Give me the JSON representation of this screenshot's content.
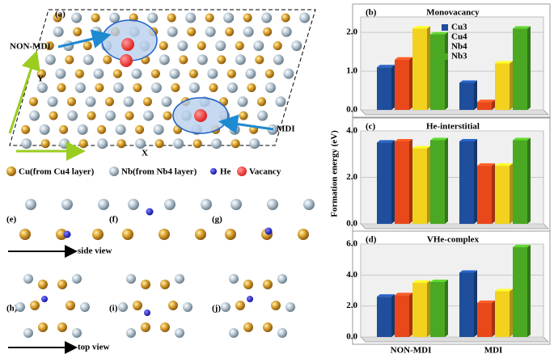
{
  "diagram": {
    "panel_label": "(a)",
    "non_mdi": "NON-MDI",
    "mdi": "MDI",
    "axis_y": "Y",
    "axis_x": "X",
    "legend": [
      "Cu(from Cu4 layer)",
      "Nb(from Nb4 layer)",
      "He",
      "Vacancy"
    ],
    "subpanels": [
      "(e)",
      "(f)",
      "(g)",
      "(h)",
      "(i)",
      "(j)"
    ],
    "side_view": "side view",
    "top_view": "top view"
  },
  "chart_data": [
    {
      "type": "bar",
      "panel": "(b)",
      "title": "Monovacancy",
      "y_label": "Formation energy (eV)",
      "ylim": [
        0,
        2.4
      ],
      "yticks": [
        {
          "value": 0,
          "label": "0.0"
        },
        {
          "value": 1,
          "label": "1.0"
        },
        {
          "value": 2,
          "label": "2.0"
        }
      ],
      "grid": true,
      "series": [
        {
          "name": "Cu3",
          "color": "#1f4e9c",
          "values": [
            1.1,
            0.7
          ]
        },
        {
          "name": "Cu4",
          "color": "#e8481a",
          "values": [
            1.3,
            0.2
          ]
        },
        {
          "name": "Nb4",
          "color": "#f2d21e",
          "values": [
            2.1,
            1.2
          ]
        },
        {
          "name": "Nb3",
          "color": "#4aa823",
          "values": [
            1.95,
            2.1
          ]
        }
      ]
    },
    {
      "type": "bar",
      "panel": "(c)",
      "title": "He-interstitial",
      "ylim": [
        0,
        4
      ],
      "yticks": [
        {
          "value": 0,
          "label": "0.0"
        },
        {
          "value": 2,
          "label": "2.0"
        },
        {
          "value": 4,
          "label": "4.0"
        }
      ],
      "grid": true,
      "series": [
        {
          "color": "#1f4e9c",
          "values": [
            3.5,
            3.55
          ]
        },
        {
          "color": "#e8481a",
          "values": [
            3.55,
            2.5
          ]
        },
        {
          "color": "#f2d21e",
          "values": [
            3.25,
            2.5
          ]
        },
        {
          "color": "#4aa823",
          "values": [
            3.6,
            3.6
          ]
        }
      ]
    },
    {
      "type": "bar",
      "panel": "(d)",
      "title": "VHe-complex",
      "categories": [
        "NON-MDI",
        "MDI"
      ],
      "ylim": [
        0,
        6
      ],
      "yticks": [
        {
          "value": 0,
          "label": "0.0"
        },
        {
          "value": 2,
          "label": "2.0"
        },
        {
          "value": 4,
          "label": "4.0"
        },
        {
          "value": 6,
          "label": "6.0"
        }
      ],
      "grid": true,
      "series": [
        {
          "color": "#1f4e9c",
          "values": [
            2.6,
            4.15
          ]
        },
        {
          "color": "#e8481a",
          "values": [
            2.7,
            2.2
          ]
        },
        {
          "color": "#f2d21e",
          "values": [
            3.5,
            2.95
          ]
        },
        {
          "color": "#4aa823",
          "values": [
            3.55,
            5.8
          ]
        }
      ]
    }
  ]
}
